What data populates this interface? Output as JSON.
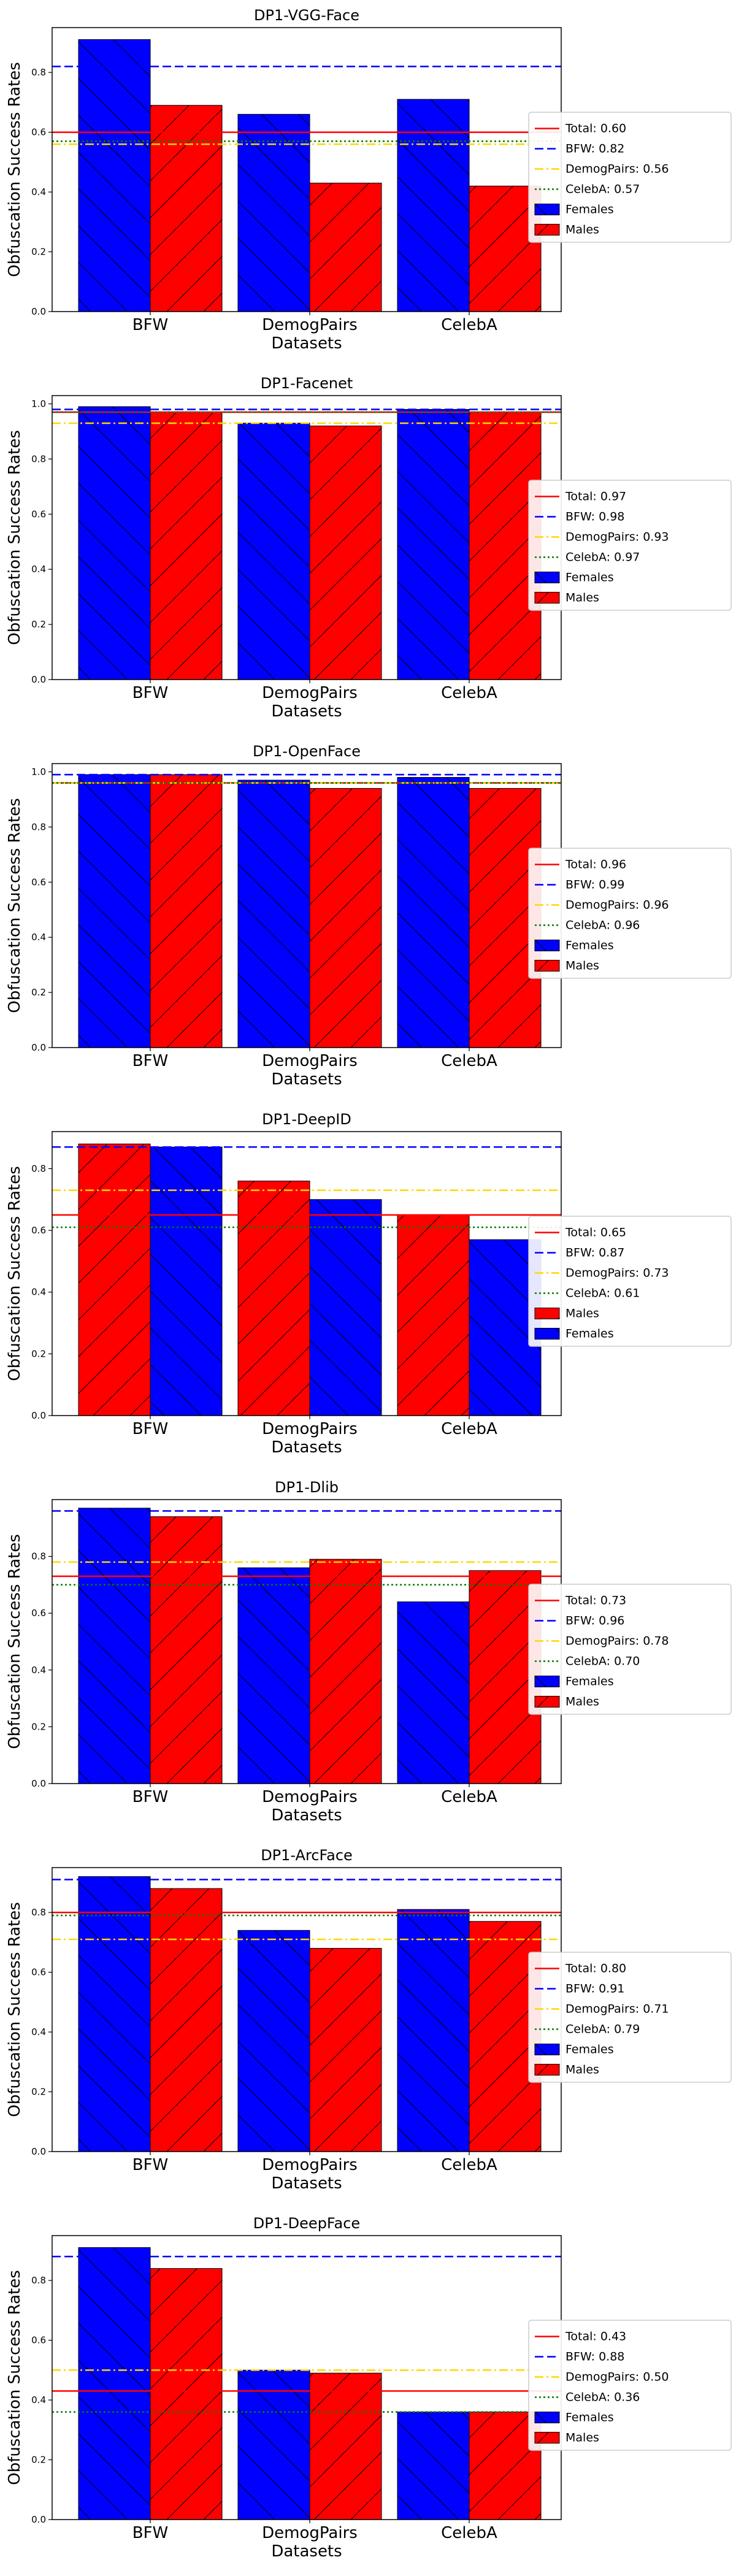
{
  "colors": {
    "blue": "#0000ff",
    "red": "#ff0000",
    "yellow": "#ffd700",
    "green": "#008000",
    "frame": "#000000"
  },
  "chart_data": [
    {
      "type": "bar",
      "title": "DP1-VGG-Face",
      "xlabel": "Datasets",
      "ylabel": "Obfuscation Success Rates",
      "categories": [
        "BFW",
        "DemogPairs",
        "CelebA"
      ],
      "ylim": [
        0,
        0.95
      ],
      "yticks": [
        "0.0",
        "0.2",
        "0.4",
        "0.6",
        "0.8"
      ],
      "series": [
        {
          "name": "Females",
          "color": "blue",
          "hatch": "back",
          "values": [
            0.91,
            0.66,
            0.71
          ]
        },
        {
          "name": "Males",
          "color": "red",
          "hatch": "fwd",
          "values": [
            0.69,
            0.43,
            0.42
          ]
        }
      ],
      "reference_lines": [
        {
          "label": "Total: 0.60",
          "value": 0.6,
          "color": "red",
          "style": "solid"
        },
        {
          "label": "BFW: 0.82",
          "value": 0.82,
          "color": "blue",
          "style": "dashed"
        },
        {
          "label": "DemogPairs: 0.56",
          "value": 0.56,
          "color": "yellow",
          "style": "dashdot"
        },
        {
          "label": "CelebA: 0.57",
          "value": 0.57,
          "color": "green",
          "style": "dotted"
        }
      ],
      "legend": "center-right"
    },
    {
      "type": "bar",
      "title": "DP1-Facenet",
      "xlabel": "Datasets",
      "ylabel": "Obfuscation Success Rates",
      "categories": [
        "BFW",
        "DemogPairs",
        "CelebA"
      ],
      "ylim": [
        0,
        1.03
      ],
      "yticks": [
        "0.0",
        "0.2",
        "0.4",
        "0.6",
        "0.8",
        "1.0"
      ],
      "series": [
        {
          "name": "Females",
          "color": "blue",
          "hatch": "back",
          "values": [
            0.99,
            0.93,
            0.98
          ]
        },
        {
          "name": "Males",
          "color": "red",
          "hatch": "fwd",
          "values": [
            0.97,
            0.92,
            0.97
          ]
        }
      ],
      "reference_lines": [
        {
          "label": "Total: 0.97",
          "value": 0.97,
          "color": "red",
          "style": "solid"
        },
        {
          "label": "BFW: 0.98",
          "value": 0.98,
          "color": "blue",
          "style": "dashed"
        },
        {
          "label": "DemogPairs: 0.93",
          "value": 0.93,
          "color": "yellow",
          "style": "dashdot"
        },
        {
          "label": "CelebA: 0.97",
          "value": 0.97,
          "color": "green",
          "style": "dotted"
        }
      ],
      "legend": "center-right"
    },
    {
      "type": "bar",
      "title": "DP1-OpenFace",
      "xlabel": "Datasets",
      "ylabel": "Obfuscation Success Rates",
      "categories": [
        "BFW",
        "DemogPairs",
        "CelebA"
      ],
      "ylim": [
        0,
        1.03
      ],
      "yticks": [
        "0.0",
        "0.2",
        "0.4",
        "0.6",
        "0.8",
        "1.0"
      ],
      "series": [
        {
          "name": "Females",
          "color": "blue",
          "hatch": "back",
          "values": [
            0.99,
            0.97,
            0.98
          ]
        },
        {
          "name": "Males",
          "color": "red",
          "hatch": "fwd",
          "values": [
            0.99,
            0.94,
            0.94
          ]
        }
      ],
      "reference_lines": [
        {
          "label": "Total: 0.96",
          "value": 0.96,
          "color": "red",
          "style": "solid"
        },
        {
          "label": "BFW: 0.99",
          "value": 0.99,
          "color": "blue",
          "style": "dashed"
        },
        {
          "label": "DemogPairs: 0.96",
          "value": 0.96,
          "color": "yellow",
          "style": "dashdot"
        },
        {
          "label": "CelebA: 0.96",
          "value": 0.96,
          "color": "green",
          "style": "dotted"
        }
      ],
      "legend": "center-right"
    },
    {
      "type": "bar",
      "title": "DP1-DeepID",
      "xlabel": "Datasets",
      "ylabel": "Obfuscation Success Rates",
      "categories": [
        "BFW",
        "DemogPairs",
        "CelebA"
      ],
      "ylim": [
        0,
        0.92
      ],
      "yticks": [
        "0.0",
        "0.2",
        "0.4",
        "0.6",
        "0.8"
      ],
      "series": [
        {
          "name": "Males",
          "color": "red",
          "hatch": "fwd",
          "values": [
            0.88,
            0.76,
            0.65
          ]
        },
        {
          "name": "Females",
          "color": "blue",
          "hatch": "back",
          "values": [
            0.87,
            0.7,
            0.57
          ]
        }
      ],
      "reference_lines": [
        {
          "label": "Total: 0.65",
          "value": 0.65,
          "color": "red",
          "style": "solid"
        },
        {
          "label": "BFW: 0.87",
          "value": 0.87,
          "color": "blue",
          "style": "dashed"
        },
        {
          "label": "DemogPairs: 0.73",
          "value": 0.73,
          "color": "yellow",
          "style": "dashdot"
        },
        {
          "label": "CelebA: 0.61",
          "value": 0.61,
          "color": "green",
          "style": "dotted"
        }
      ],
      "legend": "center-right"
    },
    {
      "type": "bar",
      "title": "DP1-Dlib",
      "xlabel": "Datasets",
      "ylabel": "Obfuscation Success Rates",
      "categories": [
        "BFW",
        "DemogPairs",
        "CelebA"
      ],
      "ylim": [
        0,
        1.0
      ],
      "yticks": [
        "0.0",
        "0.2",
        "0.4",
        "0.6",
        "0.8"
      ],
      "series": [
        {
          "name": "Females",
          "color": "blue",
          "hatch": "back",
          "values": [
            0.97,
            0.76,
            0.64
          ]
        },
        {
          "name": "Males",
          "color": "red",
          "hatch": "fwd",
          "values": [
            0.94,
            0.79,
            0.75
          ]
        }
      ],
      "reference_lines": [
        {
          "label": "Total: 0.73",
          "value": 0.73,
          "color": "red",
          "style": "solid"
        },
        {
          "label": "BFW: 0.96",
          "value": 0.96,
          "color": "blue",
          "style": "dashed"
        },
        {
          "label": "DemogPairs: 0.78",
          "value": 0.78,
          "color": "yellow",
          "style": "dashdot"
        },
        {
          "label": "CelebA: 0.70",
          "value": 0.7,
          "color": "green",
          "style": "dotted"
        }
      ],
      "legend": "center-right"
    },
    {
      "type": "bar",
      "title": "DP1-ArcFace",
      "xlabel": "Datasets",
      "ylabel": "Obfuscation Success Rates",
      "categories": [
        "BFW",
        "DemogPairs",
        "CelebA"
      ],
      "ylim": [
        0,
        0.95
      ],
      "yticks": [
        "0.0",
        "0.2",
        "0.4",
        "0.6",
        "0.8"
      ],
      "series": [
        {
          "name": "Females",
          "color": "blue",
          "hatch": "back",
          "values": [
            0.92,
            0.74,
            0.81
          ]
        },
        {
          "name": "Males",
          "color": "red",
          "hatch": "fwd",
          "values": [
            0.88,
            0.68,
            0.77
          ]
        }
      ],
      "reference_lines": [
        {
          "label": "Total: 0.80",
          "value": 0.8,
          "color": "red",
          "style": "solid"
        },
        {
          "label": "BFW: 0.91",
          "value": 0.91,
          "color": "blue",
          "style": "dashed"
        },
        {
          "label": "DemogPairs: 0.71",
          "value": 0.71,
          "color": "yellow",
          "style": "dashdot"
        },
        {
          "label": "CelebA: 0.79",
          "value": 0.79,
          "color": "green",
          "style": "dotted"
        }
      ],
      "legend": "center-right"
    },
    {
      "type": "bar",
      "title": "DP1-DeepFace",
      "xlabel": "Datasets",
      "ylabel": "Obfuscation Success Rates",
      "categories": [
        "BFW",
        "DemogPairs",
        "CelebA"
      ],
      "ylim": [
        0,
        0.95
      ],
      "yticks": [
        "0.0",
        "0.2",
        "0.4",
        "0.6",
        "0.8"
      ],
      "series": [
        {
          "name": "Females",
          "color": "blue",
          "hatch": "back",
          "values": [
            0.91,
            0.5,
            0.36
          ]
        },
        {
          "name": "Males",
          "color": "red",
          "hatch": "fwd",
          "values": [
            0.84,
            0.49,
            0.36
          ]
        }
      ],
      "reference_lines": [
        {
          "label": "Total: 0.43",
          "value": 0.43,
          "color": "red",
          "style": "solid"
        },
        {
          "label": "BFW: 0.88",
          "value": 0.88,
          "color": "blue",
          "style": "dashed"
        },
        {
          "label": "DemogPairs: 0.50",
          "value": 0.5,
          "color": "yellow",
          "style": "dashdot"
        },
        {
          "label": "CelebA: 0.36",
          "value": 0.36,
          "color": "green",
          "style": "dotted"
        }
      ],
      "legend": "center-right"
    }
  ]
}
